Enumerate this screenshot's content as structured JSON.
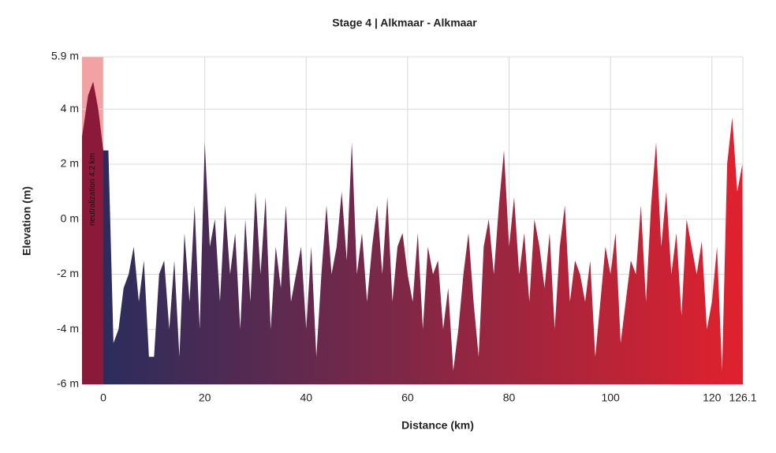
{
  "chart_data": {
    "type": "area",
    "title": "Stage 4 | Alkmaar - Alkmaar",
    "x_label": "Distance (km)",
    "y_label": "Elevation (m)",
    "neutral_zone": {
      "label": "neutralization 4.2 km",
      "range": [
        -4.2,
        0
      ],
      "color": "#f2a2a2"
    },
    "gradient": [
      "#8b1a3a",
      "#2b2d5c",
      "#e0212e"
    ],
    "grid": true,
    "xlim": [
      -4.2,
      126.1
    ],
    "xticks": [
      0,
      20,
      40,
      60,
      80,
      100,
      120,
      126.1
    ],
    "ylim": [
      -6,
      5.9
    ],
    "yticks": [
      {
        "value": 5.9,
        "label": "5.9 m"
      },
      {
        "value": 4,
        "label": "4 m"
      },
      {
        "value": 2,
        "label": "2 m"
      },
      {
        "value": 0,
        "label": "0 m"
      },
      {
        "value": -2,
        "label": "-2 m"
      },
      {
        "value": -4,
        "label": "-4 m"
      },
      {
        "value": -6,
        "label": "-6 m"
      }
    ],
    "x": [
      -4.2,
      -3,
      -2,
      -1,
      0,
      1,
      2,
      3,
      4,
      5,
      6,
      7,
      8,
      9,
      10,
      11,
      12,
      13,
      14,
      15,
      16,
      17,
      18,
      19,
      20,
      21,
      22,
      23,
      24,
      25,
      26,
      27,
      28,
      29,
      30,
      31,
      32,
      33,
      34,
      35,
      36,
      37,
      38,
      39,
      40,
      41,
      42,
      43,
      44,
      45,
      46,
      47,
      48,
      49,
      50,
      51,
      52,
      53,
      54,
      55,
      56,
      57,
      58,
      59,
      60,
      61,
      62,
      63,
      64,
      65,
      66,
      67,
      68,
      69,
      70,
      71,
      72,
      73,
      74,
      75,
      76,
      77,
      78,
      79,
      80,
      81,
      82,
      83,
      84,
      85,
      86,
      87,
      88,
      89,
      90,
      91,
      92,
      93,
      94,
      95,
      96,
      97,
      98,
      99,
      100,
      101,
      102,
      103,
      104,
      105,
      106,
      107,
      108,
      109,
      110,
      111,
      112,
      113,
      114,
      115,
      116,
      117,
      118,
      119,
      120,
      121,
      122,
      123,
      124,
      125,
      126,
      126.1
    ],
    "values": [
      3,
      4.5,
      5,
      4,
      2.5,
      2.5,
      -4.5,
      -4,
      -2.5,
      -2,
      -1,
      -3,
      -1.5,
      -5,
      -5,
      -2,
      -1.5,
      -4,
      -1.5,
      -5,
      -0.5,
      -3,
      0.5,
      -4,
      2.8,
      -1,
      0,
      -3,
      0.5,
      -2,
      -0.5,
      -4,
      0,
      -3,
      1,
      -2,
      0.8,
      -4,
      -1,
      -2.5,
      0.5,
      -3,
      -2,
      -1,
      -4,
      -1,
      -5,
      -2,
      0.5,
      -2,
      -1,
      1,
      -1.5,
      2.8,
      -2,
      -0.5,
      -3,
      -1,
      0.5,
      -2,
      0.8,
      -3,
      -1,
      -0.5,
      -2,
      -3,
      -0.5,
      -4,
      -1,
      -2,
      -1.5,
      -4,
      -2.5,
      -5.5,
      -4,
      -2,
      -0.5,
      -3,
      -5,
      -1,
      0,
      -2,
      0.5,
      2.5,
      -1,
      0.8,
      -2,
      -0.5,
      -3,
      0,
      -1,
      -2.5,
      -0.5,
      -4,
      -1,
      0.5,
      -3,
      -1.5,
      -2,
      -3,
      -1.5,
      -5,
      -3,
      -1,
      -2,
      -0.5,
      -4.5,
      -3,
      -1.5,
      -2,
      0.5,
      -3,
      0.5,
      2.8,
      -1,
      1,
      -2,
      -0.5,
      -3.5,
      0,
      -1,
      -2,
      -0.8,
      -4,
      -3,
      -1,
      -5.5,
      2,
      3.7,
      1,
      2,
      -6
    ]
  }
}
